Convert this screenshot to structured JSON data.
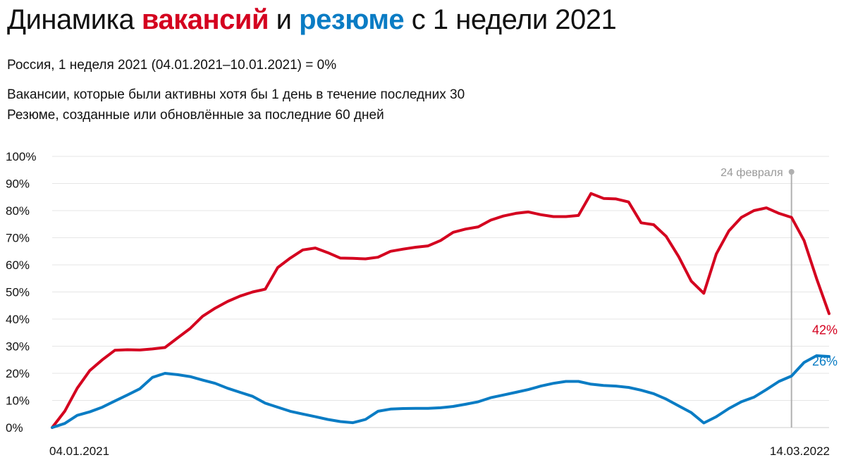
{
  "header": {
    "title_prefix": "Динамика",
    "title_vacancies": "вакансий",
    "title_and": "и",
    "title_resumes": "резюме",
    "title_suffix": "с 1 недели 2021",
    "subtitle_base": "Россия, 1 неделя 2021 (04.01.2021–10.01.2021) = 0%",
    "note_vacancies": "Вакансии, которые были активны хотя бы 1 день в течение последних 30",
    "note_resumes": "Резюме, созданные или обновлённые за последние 60 дней"
  },
  "colors": {
    "vacancies": "#d4001f",
    "resumes": "#0a7cc4",
    "marker": "#b0b0b0",
    "grid": "#e6e6e6"
  },
  "chart_data": {
    "type": "line",
    "title": "Динамика вакансий и резюме с 1 недели 2021",
    "x_start_label": "04.01.2021",
    "x_end_label": "14.03.2022",
    "ylim": [
      0,
      100
    ],
    "y_ticks": [
      "0%",
      "10%",
      "20%",
      "30%",
      "40%",
      "50%",
      "60%",
      "70%",
      "80%",
      "90%",
      "100%"
    ],
    "y_tick_values": [
      0,
      10,
      20,
      30,
      40,
      50,
      60,
      70,
      80,
      90,
      100
    ],
    "grid": true,
    "annotation": {
      "label": "24 февраля",
      "week_index": 59
    },
    "series": [
      {
        "key": "vacancies",
        "values": [
          0,
          6,
          14.5,
          21,
          25,
          28.5,
          28.7,
          28.6,
          29,
          29.5,
          33,
          36.5,
          41,
          44,
          46.5,
          48.5,
          50,
          51,
          59,
          62.5,
          65.5,
          66.2,
          64.5,
          62.5,
          62.4,
          62.2,
          62.8,
          65,
          65.8,
          66.5,
          67,
          69,
          72,
          73.2,
          74,
          76.5,
          78,
          79,
          79.5,
          78.5,
          77.8,
          77.8,
          78.2,
          86.3,
          84.5,
          84.3,
          83.2,
          75.5,
          74.8,
          70.5,
          63,
          54,
          49.5,
          64,
          72.5,
          77.5,
          80,
          81,
          79,
          77.5,
          69,
          55,
          42
        ],
        "end_label": "42%"
      },
      {
        "key": "resumes",
        "values": [
          0,
          1.5,
          4.5,
          5.8,
          7.5,
          9.8,
          12,
          14.3,
          18.5,
          20,
          19.5,
          18.8,
          17.5,
          16.3,
          14.5,
          13,
          11.5,
          9,
          7.5,
          6,
          5,
          4,
          3,
          2.2,
          1.8,
          3,
          6,
          6.8,
          7,
          7.1,
          7.1,
          7.3,
          7.8,
          8.6,
          9.5,
          11,
          12,
          13,
          14,
          15.3,
          16.3,
          17,
          17,
          16,
          15.5,
          15.3,
          14.8,
          13.8,
          12.5,
          10.5,
          8,
          5.5,
          1.7,
          4,
          7,
          9.5,
          11.2,
          14,
          17,
          19,
          24,
          26.5,
          26.2
        ],
        "end_label": "26%"
      }
    ]
  }
}
